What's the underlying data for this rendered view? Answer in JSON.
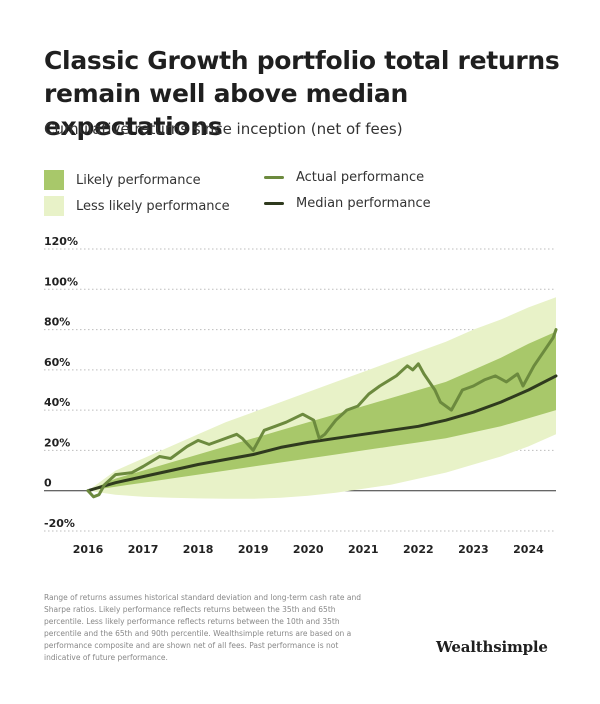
{
  "header": {
    "title": "Classic Growth portfolio total returns remain well above median expectations",
    "subtitle": "Cumulative returns since inception (net of fees)"
  },
  "legend": {
    "likely": "Likely performance",
    "less_likely": "Less likely performance",
    "actual": "Actual performance",
    "median": "Median performance"
  },
  "colors": {
    "likely_band": "#a8c86a",
    "less_likely_band": "#e8f2c8",
    "actual_line": "#6c8a3e",
    "median_line": "#2f3a1e"
  },
  "footnote": "Range of returns assumes historical standard deviation and long-term cash rate and Sharpe ratios. Likely performance reflects returns between the 35th and 65th percentile. Less likely performance reflects returns between the 10th and 35th percentile and the 65th and 90th percentile. Wealthsimple returns are based on a performance composite and are shown net of all fees. Past performance is not indicative of future performance.",
  "brand": "Wealthsimple",
  "chart_data": {
    "type": "area",
    "ylim": [
      -20,
      120
    ],
    "xlim": [
      2016.0,
      2024.5
    ],
    "y_ticks": [
      -20,
      0,
      20,
      40,
      60,
      80,
      100,
      120
    ],
    "y_tick_labels": [
      "-20%",
      "0",
      "20%",
      "40%",
      "60%",
      "80%",
      "100%",
      "120%"
    ],
    "x_ticks": [
      2016,
      2017,
      2018,
      2019,
      2020,
      2021,
      2022,
      2023,
      2024
    ],
    "x_tick_labels": [
      "2016",
      "2017",
      "2018",
      "2019",
      "2020",
      "2021",
      "2022",
      "2023",
      "2024"
    ],
    "grid": "horizontal-dotted",
    "series": [
      {
        "name": "Less likely performance",
        "kind": "band",
        "x": [
          2016.0,
          2016.5,
          2017.0,
          2017.5,
          2018.0,
          2018.5,
          2019.0,
          2019.5,
          2020.0,
          2020.5,
          2021.0,
          2021.5,
          2022.0,
          2022.5,
          2023.0,
          2023.5,
          2024.0,
          2024.5
        ],
        "low": [
          0,
          -2,
          -3,
          -3.5,
          -3.8,
          -4,
          -4,
          -3.5,
          -2.5,
          -1,
          1,
          3,
          6,
          9,
          13,
          17,
          22,
          28
        ],
        "high": [
          0,
          10,
          16,
          22,
          28,
          34,
          39,
          44,
          49,
          54,
          59,
          64,
          69,
          74,
          80,
          85,
          91,
          96
        ]
      },
      {
        "name": "Likely performance",
        "kind": "band",
        "x": [
          2016.0,
          2016.5,
          2017.0,
          2017.5,
          2018.0,
          2018.5,
          2019.0,
          2019.5,
          2020.0,
          2020.5,
          2021.0,
          2021.5,
          2022.0,
          2022.5,
          2023.0,
          2023.5,
          2024.0,
          2024.5
        ],
        "low": [
          0,
          2,
          4,
          6,
          8,
          10,
          12,
          14,
          16,
          18,
          20,
          22,
          24,
          26,
          29,
          32,
          36,
          40
        ],
        "high": [
          0,
          6,
          10,
          14,
          18,
          22,
          26,
          30,
          34,
          38,
          42,
          46,
          50,
          54,
          60,
          66,
          73,
          79
        ]
      },
      {
        "name": "Median performance",
        "kind": "line",
        "x": [
          2016.0,
          2016.5,
          2017.0,
          2017.5,
          2018.0,
          2018.5,
          2019.0,
          2019.5,
          2020.0,
          2020.5,
          2021.0,
          2021.5,
          2022.0,
          2022.5,
          2023.0,
          2023.5,
          2024.0,
          2024.5
        ],
        "y": [
          0,
          4,
          7,
          10,
          13,
          15.5,
          18,
          21.5,
          24,
          26,
          28,
          30,
          32,
          35,
          39,
          44,
          50,
          57
        ]
      },
      {
        "name": "Actual performance",
        "kind": "line",
        "x": [
          2016.0,
          2016.1,
          2016.2,
          2016.3,
          2016.5,
          2016.8,
          2017.0,
          2017.3,
          2017.5,
          2017.8,
          2018.0,
          2018.2,
          2018.4,
          2018.7,
          2018.8,
          2019.0,
          2019.2,
          2019.4,
          2019.6,
          2019.9,
          2020.1,
          2020.2,
          2020.3,
          2020.5,
          2020.7,
          2020.9,
          2021.1,
          2021.3,
          2021.6,
          2021.8,
          2021.9,
          2022.0,
          2022.1,
          2022.3,
          2022.4,
          2022.6,
          2022.7,
          2022.8,
          2023.0,
          2023.2,
          2023.4,
          2023.6,
          2023.8,
          2023.9,
          2024.1,
          2024.3,
          2024.45,
          2024.5
        ],
        "y": [
          0,
          -3,
          -2,
          3,
          8,
          9,
          12,
          17,
          16,
          22,
          25,
          23,
          25,
          28,
          26,
          20,
          30,
          32,
          34,
          38,
          35,
          26,
          28,
          35,
          40,
          42,
          48,
          52,
          57,
          62,
          60,
          63,
          58,
          50,
          44,
          40,
          45,
          50,
          52,
          55,
          57,
          54,
          58,
          52,
          62,
          70,
          76,
          80
        ]
      }
    ]
  }
}
